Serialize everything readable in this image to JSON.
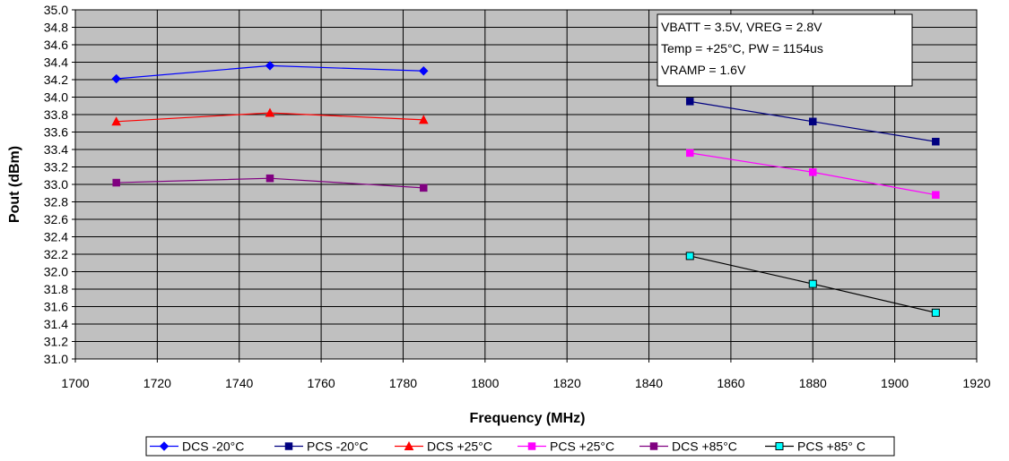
{
  "chart_data": {
    "type": "line",
    "title": "",
    "xlabel": "Frequency (MHz)",
    "ylabel": "Pout (dBm)",
    "xlim": [
      1700,
      1920
    ],
    "ylim": [
      31.0,
      35.0
    ],
    "x_ticks": [
      1700,
      1720,
      1740,
      1760,
      1780,
      1800,
      1820,
      1840,
      1860,
      1880,
      1900,
      1920
    ],
    "y_ticks": [
      31.0,
      31.2,
      31.4,
      31.6,
      31.8,
      32.0,
      32.2,
      32.4,
      32.6,
      32.8,
      33.0,
      33.2,
      33.4,
      33.6,
      33.8,
      34.0,
      34.2,
      34.4,
      34.6,
      34.8,
      35.0
    ],
    "grid": true,
    "plot_background": "#c0c0c0",
    "legend_position": "bottom",
    "annotation": [
      "VBATT  = 3.5V, VREG = 2.8V",
      "Temp = +25°C, PW = 1154us",
      "VRAMP = 1.6V"
    ],
    "series": [
      {
        "name": "DCS -20°C",
        "color": "#0000ff",
        "marker": "diamond",
        "x": [
          1710,
          1747.5,
          1785
        ],
        "y": [
          34.21,
          34.36,
          34.3
        ]
      },
      {
        "name": "PCS -20°C",
        "color": "#000080",
        "marker": "square",
        "x": [
          1850,
          1880,
          1910
        ],
        "y": [
          33.95,
          33.72,
          33.49
        ]
      },
      {
        "name": "DCS +25°C",
        "color": "#ff0000",
        "marker": "triangle",
        "x": [
          1710,
          1747.5,
          1785
        ],
        "y": [
          33.72,
          33.82,
          33.74
        ]
      },
      {
        "name": "PCS +25°C",
        "color": "#ff00ff",
        "marker": "square",
        "x": [
          1850,
          1880,
          1910
        ],
        "y": [
          33.36,
          33.14,
          32.88
        ]
      },
      {
        "name": "DCS +85°C",
        "color": "#800080",
        "marker": "square",
        "x": [
          1710,
          1747.5,
          1785
        ],
        "y": [
          33.02,
          33.07,
          32.96
        ]
      },
      {
        "name": "PCS +85° C",
        "color": "#000000",
        "marker": "square-hollow",
        "marker_fill": "#00ffff",
        "x": [
          1850,
          1880,
          1910
        ],
        "y": [
          32.18,
          31.86,
          31.53
        ]
      }
    ]
  }
}
